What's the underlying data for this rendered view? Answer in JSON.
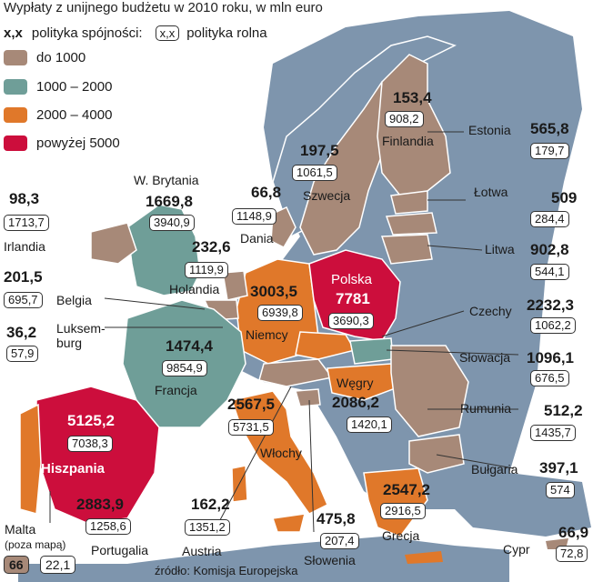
{
  "title": "Wypłaty z unijnego budżetu w 2010 roku, w mln euro",
  "legend": {
    "cohesion_key": "x,x",
    "cohesion_label": "polityka spójności:",
    "agri_key": "x,x",
    "agri_label": "polityka rolna",
    "categories": [
      {
        "label": "do 1000",
        "color": "#a78978"
      },
      {
        "label": "1000 – 2000",
        "color": "#6f9e98"
      },
      {
        "label": "2000 – 4000",
        "color": "#e0782a"
      },
      {
        "label": "powyżej 5000",
        "color": "#cc0e3c"
      }
    ]
  },
  "countries": {
    "finlandia": {
      "name": "Finlandia",
      "cohesion": "153,4",
      "agri": "908,2"
    },
    "szwecja": {
      "name": "Szwecja",
      "cohesion": "197,5",
      "agri": "1061,5"
    },
    "estonia": {
      "name": "Estonia",
      "cohesion": "565,8",
      "agri": "179,7"
    },
    "lotwa": {
      "name": "Łotwa",
      "cohesion": "509",
      "agri": "284,4"
    },
    "litwa": {
      "name": "Litwa",
      "cohesion": "902,8",
      "agri": "544,1"
    },
    "wbrytania": {
      "name": "W. Brytania",
      "cohesion": "1669,8",
      "agri": "3940,9"
    },
    "irlandia": {
      "name": "Irlandia",
      "cohesion": "98,3",
      "agri": "1713,7"
    },
    "dania": {
      "name": "Dania",
      "cohesion": "66,8",
      "agri": "1148,9"
    },
    "holandia": {
      "name": "Holandia",
      "cohesion": "232,6",
      "agri": "1119,9"
    },
    "belgia": {
      "name": "Belgia",
      "cohesion": "201,5",
      "agri": "695,7"
    },
    "luksemburg": {
      "name": "Luksem-\nburg",
      "cohesion": "36,2",
      "agri": "57,9"
    },
    "niemcy": {
      "name": "Niemcy",
      "cohesion": "3003,5",
      "agri": "6939,8"
    },
    "polska": {
      "name": "Polska",
      "cohesion": "7781",
      "agri": "3690,3"
    },
    "czechy": {
      "name": "Czechy",
      "cohesion": "2232,3",
      "agri": "1062,2"
    },
    "francja": {
      "name": "Francja",
      "cohesion": "1474,4",
      "agri": "9854,9"
    },
    "slowacja": {
      "name": "Słowacja",
      "cohesion": "1096,1",
      "agri": "676,5"
    },
    "wegry": {
      "name": "Węgry",
      "cohesion": "2086,2",
      "agri": "1420,1"
    },
    "rumunia": {
      "name": "Rumunia",
      "cohesion": "512,2",
      "agri": "1435,7"
    },
    "hiszpania": {
      "name": "Hiszpania",
      "cohesion": "5125,2",
      "agri": "7038,3"
    },
    "wlochy": {
      "name": "Włochy",
      "cohesion": "2567,5",
      "agri": "5731,5"
    },
    "bulgaria": {
      "name": "Bułgaria",
      "cohesion": "397,1",
      "agri": "574"
    },
    "portugalia": {
      "name": "Portugalia",
      "cohesion": "2883,9",
      "agri": "1258,6"
    },
    "austria": {
      "name": "Austria",
      "cohesion": "162,2",
      "agri": "1351,2"
    },
    "slowenia": {
      "name": "Słowenia",
      "cohesion": "475,8",
      "agri": "207,4"
    },
    "grecja": {
      "name": "Grecja",
      "cohesion": "2547,2",
      "agri": "2916,5"
    },
    "cypr": {
      "name": "Cypr",
      "cohesion": "66,9",
      "agri": "72,8"
    }
  },
  "malta": {
    "name": "Malta",
    "note": "(poza mapą)",
    "cohesion": "66",
    "agri": "22,1"
  },
  "source": "źródło: Komisja Europejska"
}
